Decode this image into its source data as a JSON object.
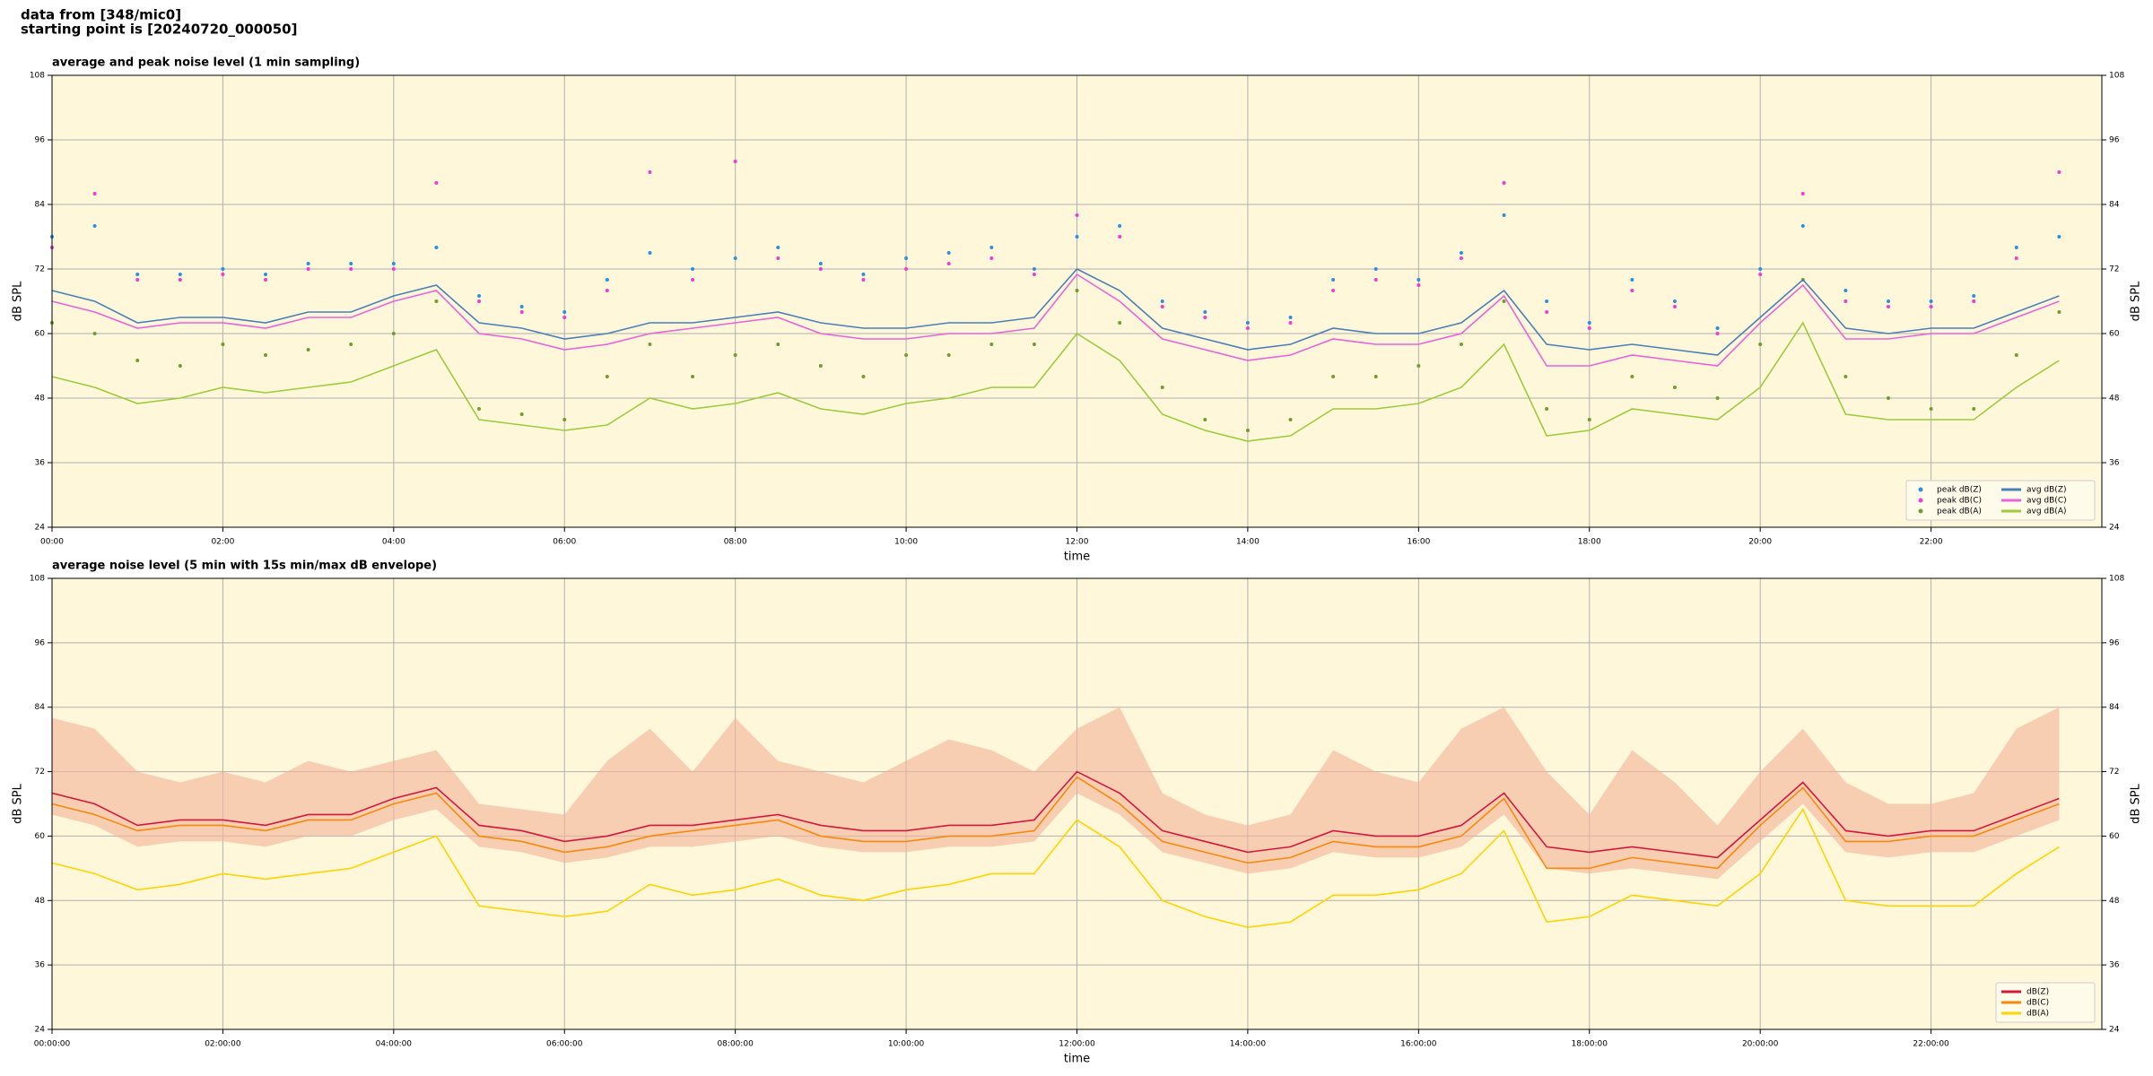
{
  "header": {
    "lines": [
      "data from [348/mic0]",
      "starting point is [20240720_000050]"
    ]
  },
  "chart_data": [
    {
      "type": "line",
      "title": "average and peak noise level (1 min sampling)",
      "xlabel": "time",
      "ylabel": "dB SPL",
      "x": [
        0,
        30,
        60,
        90,
        120,
        150,
        180,
        210,
        240,
        270,
        300,
        330,
        360,
        390,
        420,
        450,
        480,
        510,
        540,
        570,
        600,
        630,
        660,
        690,
        720,
        750,
        780,
        810,
        840,
        870,
        900,
        930,
        960,
        990,
        1020,
        1050,
        1080,
        1110,
        1140,
        1170,
        1200,
        1230,
        1260,
        1290,
        1320,
        1350,
        1380,
        1410
      ],
      "xlim": [
        0,
        1440
      ],
      "xticks": [
        {
          "value": 0,
          "label": "00:00"
        },
        {
          "value": 120,
          "label": "02:00"
        },
        {
          "value": 240,
          "label": "04:00"
        },
        {
          "value": 360,
          "label": "06:00"
        },
        {
          "value": 480,
          "label": "08:00"
        },
        {
          "value": 600,
          "label": "10:00"
        },
        {
          "value": 720,
          "label": "12:00"
        },
        {
          "value": 840,
          "label": "14:00"
        },
        {
          "value": 960,
          "label": "16:00"
        },
        {
          "value": 1080,
          "label": "18:00"
        },
        {
          "value": 1200,
          "label": "20:00"
        },
        {
          "value": 1320,
          "label": "22:00"
        }
      ],
      "ylim": [
        24,
        108
      ],
      "yticks": [
        24,
        36,
        48,
        60,
        72,
        84,
        96,
        108
      ],
      "grid": true,
      "legend": "lower right",
      "legend_columns": 2,
      "series": [
        {
          "name": "peak dB(Z)",
          "color": "#2b8fe0",
          "style": "markers",
          "values": [
            78,
            80,
            71,
            71,
            72,
            71,
            73,
            73,
            73,
            76,
            67,
            65,
            64,
            70,
            75,
            72,
            74,
            76,
            73,
            71,
            74,
            75,
            76,
            72,
            78,
            80,
            66,
            64,
            62,
            63,
            70,
            72,
            70,
            75,
            82,
            66,
            62,
            70,
            66,
            61,
            72,
            80,
            68,
            66,
            66,
            67,
            76,
            78
          ]
        },
        {
          "name": "peak dB(C)",
          "color": "#f03cd2",
          "style": "markers",
          "values": [
            76,
            86,
            70,
            70,
            71,
            70,
            72,
            72,
            72,
            88,
            66,
            64,
            63,
            68,
            90,
            70,
            92,
            74,
            72,
            70,
            72,
            73,
            74,
            71,
            82,
            78,
            65,
            63,
            61,
            62,
            68,
            70,
            69,
            74,
            88,
            64,
            61,
            68,
            65,
            60,
            71,
            86,
            66,
            65,
            65,
            66,
            74,
            90
          ]
        },
        {
          "name": "peak dB(A)",
          "color": "#6f9e2a",
          "style": "markers",
          "values": [
            62,
            60,
            55,
            54,
            58,
            56,
            57,
            58,
            60,
            66,
            46,
            45,
            44,
            52,
            58,
            52,
            56,
            58,
            54,
            52,
            56,
            56,
            58,
            58,
            68,
            62,
            50,
            44,
            42,
            44,
            52,
            52,
            54,
            58,
            66,
            46,
            44,
            52,
            50,
            48,
            58,
            70,
            52,
            48,
            46,
            46,
            56,
            64
          ]
        },
        {
          "name": "avg dB(Z)",
          "color": "#4a7fb8",
          "style": "line",
          "values": [
            68,
            66,
            62,
            63,
            63,
            62,
            64,
            64,
            67,
            69,
            62,
            61,
            59,
            60,
            62,
            62,
            63,
            64,
            62,
            61,
            61,
            62,
            62,
            63,
            72,
            68,
            61,
            59,
            57,
            58,
            61,
            60,
            60,
            62,
            68,
            58,
            57,
            58,
            57,
            56,
            63,
            70,
            61,
            60,
            61,
            61,
            64,
            67
          ]
        },
        {
          "name": "avg dB(C)",
          "color": "#e864d8",
          "style": "line",
          "values": [
            66,
            64,
            61,
            62,
            62,
            61,
            63,
            63,
            66,
            68,
            60,
            59,
            57,
            58,
            60,
            61,
            62,
            63,
            60,
            59,
            59,
            60,
            60,
            61,
            71,
            66,
            59,
            57,
            55,
            56,
            59,
            58,
            58,
            60,
            67,
            54,
            54,
            56,
            55,
            54,
            62,
            69,
            59,
            59,
            60,
            60,
            63,
            66
          ]
        },
        {
          "name": "avg dB(A)",
          "color": "#9ccc3c",
          "style": "line",
          "values": [
            52,
            50,
            47,
            48,
            50,
            49,
            50,
            51,
            54,
            57,
            44,
            43,
            42,
            43,
            48,
            46,
            47,
            49,
            46,
            45,
            47,
            48,
            50,
            50,
            60,
            55,
            45,
            42,
            40,
            41,
            46,
            46,
            47,
            50,
            58,
            41,
            42,
            46,
            45,
            44,
            50,
            62,
            45,
            44,
            44,
            44,
            50,
            55
          ]
        }
      ]
    },
    {
      "type": "line",
      "title": "average noise level (5 min with 15s min/max dB envelope)",
      "xlabel": "time",
      "ylabel": "dB SPL",
      "x": [
        0,
        30,
        60,
        90,
        120,
        150,
        180,
        210,
        240,
        270,
        300,
        330,
        360,
        390,
        420,
        450,
        480,
        510,
        540,
        570,
        600,
        630,
        660,
        690,
        720,
        750,
        780,
        810,
        840,
        870,
        900,
        930,
        960,
        990,
        1020,
        1050,
        1080,
        1110,
        1140,
        1170,
        1200,
        1230,
        1260,
        1290,
        1320,
        1350,
        1380,
        1410
      ],
      "xlim": [
        0,
        1440
      ],
      "xticks": [
        {
          "value": 0,
          "label": "00:00:00"
        },
        {
          "value": 120,
          "label": "02:00:00"
        },
        {
          "value": 240,
          "label": "04:00:00"
        },
        {
          "value": 360,
          "label": "06:00:00"
        },
        {
          "value": 480,
          "label": "08:00:00"
        },
        {
          "value": 600,
          "label": "10:00:00"
        },
        {
          "value": 720,
          "label": "12:00:00"
        },
        {
          "value": 840,
          "label": "14:00:00"
        },
        {
          "value": 960,
          "label": "16:00:00"
        },
        {
          "value": 1080,
          "label": "18:00:00"
        },
        {
          "value": 1200,
          "label": "20:00:00"
        },
        {
          "value": 1320,
          "label": "22:00:00"
        }
      ],
      "ylim": [
        24,
        108
      ],
      "yticks": [
        24,
        36,
        48,
        60,
        72,
        84,
        96,
        108
      ],
      "grid": true,
      "legend": "lower right",
      "legend_columns": 1,
      "envelope": {
        "color": "#f4b39a",
        "upper": [
          82,
          80,
          72,
          70,
          72,
          70,
          74,
          72,
          74,
          76,
          66,
          65,
          64,
          74,
          80,
          72,
          82,
          74,
          72,
          70,
          74,
          78,
          76,
          72,
          80,
          84,
          68,
          64,
          62,
          64,
          76,
          72,
          70,
          80,
          84,
          72,
          64,
          76,
          70,
          62,
          72,
          80,
          70,
          66,
          66,
          68,
          80,
          84
        ],
        "lower": [
          64,
          62,
          58,
          59,
          59,
          58,
          60,
          60,
          63,
          65,
          58,
          57,
          55,
          56,
          58,
          58,
          59,
          60,
          58,
          57,
          57,
          58,
          58,
          59,
          68,
          64,
          57,
          55,
          53,
          54,
          57,
          56,
          56,
          58,
          64,
          54,
          53,
          54,
          53,
          52,
          59,
          66,
          57,
          56,
          57,
          57,
          60,
          63
        ]
      },
      "series": [
        {
          "name": "dB(Z)",
          "color": "#d4183c",
          "style": "line",
          "values": [
            68,
            66,
            62,
            63,
            63,
            62,
            64,
            64,
            67,
            69,
            62,
            61,
            59,
            60,
            62,
            62,
            63,
            64,
            62,
            61,
            61,
            62,
            62,
            63,
            72,
            68,
            61,
            59,
            57,
            58,
            61,
            60,
            60,
            62,
            68,
            58,
            57,
            58,
            57,
            56,
            63,
            70,
            61,
            60,
            61,
            61,
            64,
            67
          ]
        },
        {
          "name": "dB(C)",
          "color": "#f7890c",
          "style": "line",
          "values": [
            66,
            64,
            61,
            62,
            62,
            61,
            63,
            63,
            66,
            68,
            60,
            59,
            57,
            58,
            60,
            61,
            62,
            63,
            60,
            59,
            59,
            60,
            60,
            61,
            71,
            66,
            59,
            57,
            55,
            56,
            59,
            58,
            58,
            60,
            67,
            54,
            54,
            56,
            55,
            54,
            62,
            69,
            59,
            59,
            60,
            60,
            63,
            66
          ]
        },
        {
          "name": "dB(A)",
          "color": "#ffd400",
          "style": "line",
          "values": [
            55,
            53,
            50,
            51,
            53,
            52,
            53,
            54,
            57,
            60,
            47,
            46,
            45,
            46,
            51,
            49,
            50,
            52,
            49,
            48,
            50,
            51,
            53,
            53,
            63,
            58,
            48,
            45,
            43,
            44,
            49,
            49,
            50,
            53,
            61,
            44,
            45,
            49,
            48,
            47,
            53,
            65,
            48,
            47,
            47,
            47,
            53,
            58
          ]
        }
      ]
    }
  ]
}
